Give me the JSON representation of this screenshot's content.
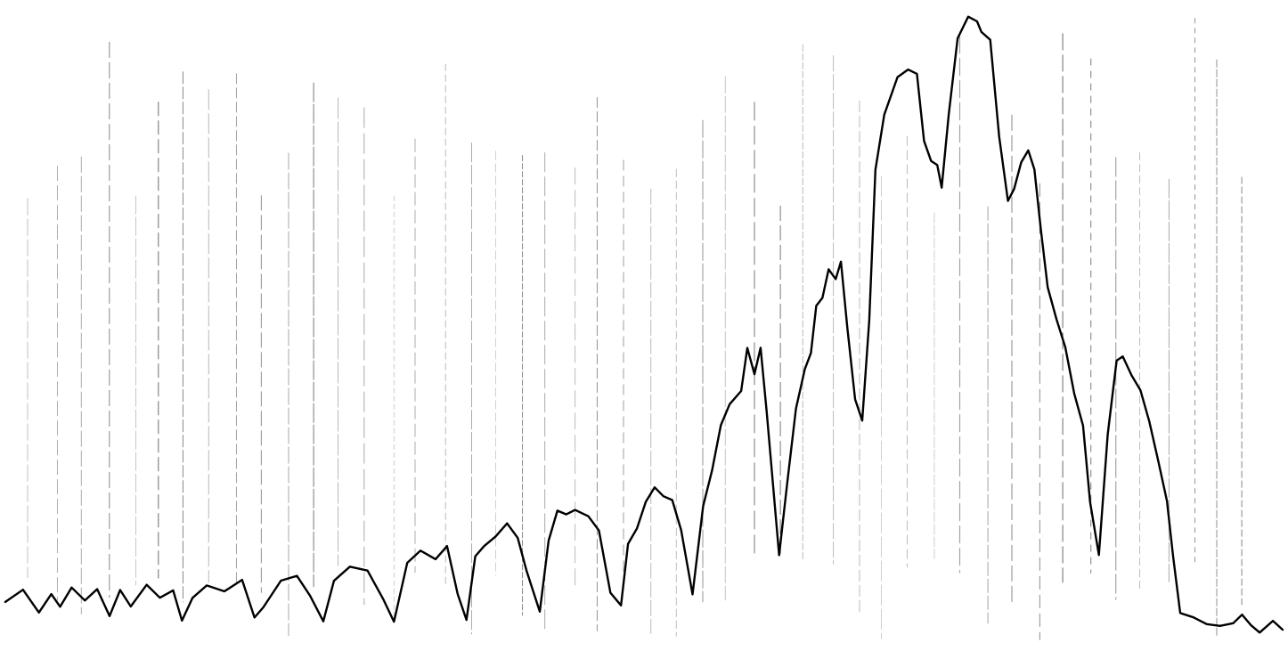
{
  "chart_data": {
    "type": "line",
    "title": "",
    "xlabel": "",
    "ylabel": "",
    "xlim": [
      0,
      1446
    ],
    "ylim": [
      0,
      1
    ],
    "grid": true,
    "legend": "none",
    "colors": {
      "trace": "#000000",
      "grid": "#555555",
      "background": "#ffffff"
    },
    "series": [
      {
        "x": [
          0,
          20,
          38,
          52,
          62,
          75,
          90,
          104,
          118,
          130,
          142,
          160,
          175,
          190,
          200,
          212,
          228,
          248,
          268,
          282,
          292,
          312,
          330,
          345,
          360,
          372,
          390,
          410,
          428,
          440,
          455,
          470,
          487,
          500,
          512,
          522,
          532,
          542,
          555,
          568,
          580,
          590,
          605,
          615,
          625,
          635,
          645,
          660,
          672,
          685,
          697,
          705,
          715,
          725,
          735,
          745,
          755,
          765,
          778,
          790,
          800,
          810,
          820,
          833,
          840,
          848,
          855,
          862,
          876,
          885,
          895,
          905,
          912,
          918,
          925,
          932,
          940,
          946,
          953,
          962,
          970,
          978,
          985,
          995,
          1010,
          1022,
          1032,
          1040,
          1048,
          1055,
          1060,
          1068,
          1078,
          1090,
          1100,
          1105,
          1115,
          1125,
          1135,
          1142,
          1150,
          1158,
          1165,
          1172,
          1180,
          1190,
          1200,
          1210,
          1220,
          1228,
          1238,
          1248,
          1258,
          1265,
          1275,
          1285,
          1295,
          1305,
          1315,
          1322,
          1330,
          1345,
          1360,
          1375,
          1390,
          1400,
          1410,
          1420,
          1435,
          1446
        ],
        "y": [
          0.052,
          0.073,
          0.035,
          0.065,
          0.045,
          0.076,
          0.055,
          0.073,
          0.028,
          0.07,
          0.045,
          0.079,
          0.059,
          0.07,
          0.021,
          0.059,
          0.079,
          0.07,
          0.087,
          0.028,
          0.042,
          0.087,
          0.094,
          0.063,
          0.021,
          0.087,
          0.108,
          0.104,
          0.056,
          0.021,
          0.115,
          0.136,
          0.122,
          0.143,
          0.066,
          0.024,
          0.125,
          0.143,
          0.157,
          0.178,
          0.157,
          0.104,
          0.035,
          0.15,
          0.199,
          0.195,
          0.202,
          0.192,
          0.167,
          0.066,
          0.045,
          0.146,
          0.171,
          0.213,
          0.237,
          0.223,
          0.216,
          0.167,
          0.063,
          0.206,
          0.265,
          0.338,
          0.373,
          0.394,
          0.463,
          0.421,
          0.463,
          0.359,
          0.129,
          0.244,
          0.366,
          0.429,
          0.455,
          0.532,
          0.543,
          0.589,
          0.575,
          0.603,
          0.498,
          0.38,
          0.345,
          0.508,
          0.75,
          0.839,
          0.9,
          0.913,
          0.906,
          0.797,
          0.766,
          0.758,
          0.721,
          0.839,
          0.965,
          1.0,
          0.99,
          0.975,
          0.961,
          0.805,
          0.702,
          0.721,
          0.762,
          0.784,
          0.751,
          0.658,
          0.561,
          0.508,
          0.463,
          0.39,
          0.338,
          0.213,
          0.129,
          0.324,
          0.442,
          0.449,
          0.418,
          0.394,
          0.345,
          0.282,
          0.216,
          0.126,
          0.035,
          0.028,
          0.017,
          0.014,
          0.019,
          0.032,
          0.014,
          0.003,
          0.021,
          0.007
        ]
      }
    ]
  }
}
